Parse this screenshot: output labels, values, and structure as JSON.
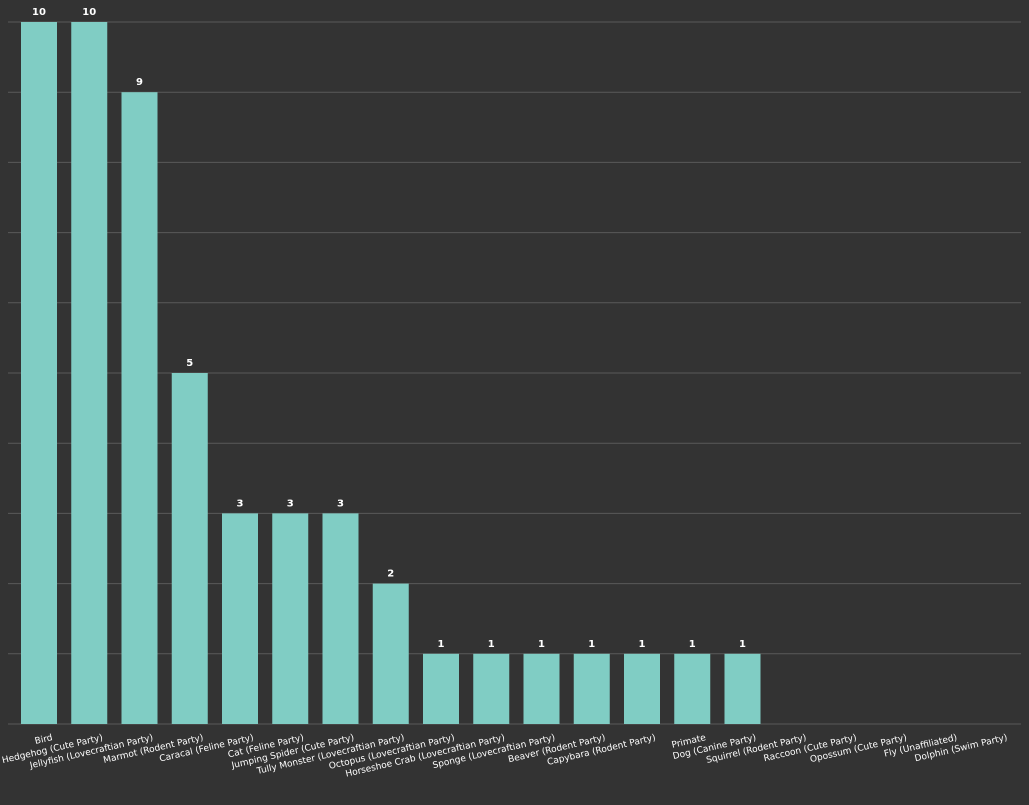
{
  "chart_data": {
    "type": "bar",
    "title": "",
    "xlabel": "",
    "ylabel": "",
    "ylim": [
      0,
      10
    ],
    "grid": true,
    "categories": [
      "Bird",
      "Hedgehog (Cute Party)",
      "Jellyfish (Lovecraftian Party)",
      "Marmot (Rodent Party)",
      "Caracal (Feline Party)",
      "Cat (Feline Party)",
      "Jumping Spider (Cute Party)",
      "Tully Monster (Lovecraftian Party)",
      "Octopus (Lovecraftian Party)",
      "Horseshoe Crab (Lovecraftian Party)",
      "Sponge (Lovecraftian Party)",
      "Beaver (Rodent Party)",
      "Capybara (Rodent Party)",
      "Primate",
      "Dog (Canine Party)",
      "Squirrel (Rodent Party)",
      "Raccoon (Cute Party)",
      "Opossum (Cute Party)",
      "Fly (Unaffiliated)",
      "Dolphin (Swim Party)"
    ],
    "values": [
      10,
      10,
      9,
      5,
      3,
      3,
      3,
      2,
      1,
      1,
      1,
      1,
      1,
      1,
      1,
      0,
      0,
      0,
      0,
      0
    ],
    "data_labels": [
      "10",
      "10",
      "9",
      "5",
      "3",
      "3",
      "3",
      "2",
      "1",
      "1",
      "1",
      "1",
      "1",
      "1",
      "1",
      "",
      "",
      "",
      "",
      ""
    ],
    "colors": {
      "background": "#333333",
      "bar": "#80CDC4",
      "grid": "#5a5a5a",
      "text": "#ffffff"
    }
  }
}
